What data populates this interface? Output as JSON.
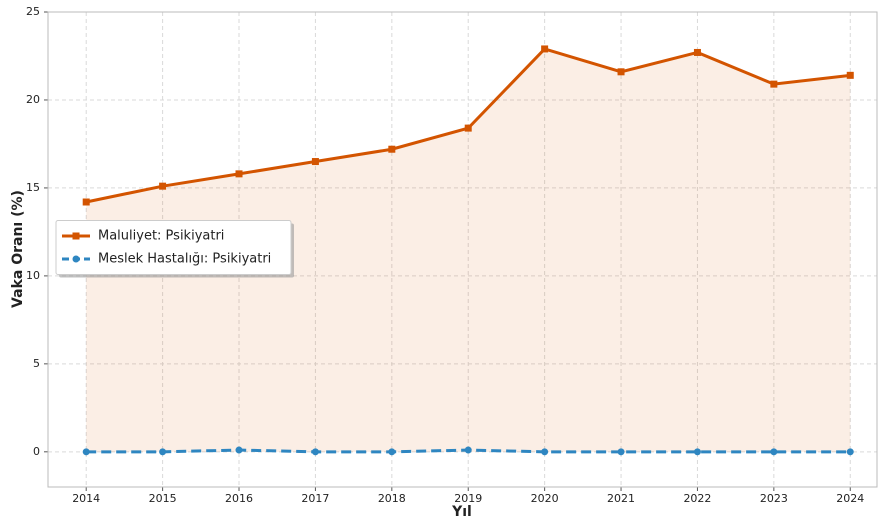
{
  "chart_data": {
    "type": "line",
    "x_label": "Yıl",
    "y_label": "Vaka Oranı (%)",
    "x": [
      2014,
      2015,
      2016,
      2017,
      2018,
      2019,
      2020,
      2021,
      2022,
      2023,
      2024
    ],
    "series": [
      {
        "name": "Maluliyet: Psikiyatri",
        "color": "#d35400",
        "marker": "square",
        "dash": "solid",
        "fill": true,
        "values": [
          14.2,
          15.1,
          15.8,
          16.5,
          17.2,
          18.4,
          22.9,
          21.6,
          22.7,
          20.9,
          21.4
        ]
      },
      {
        "name": "Meslek Hastalığı: Psikiyatri",
        "color": "#2e86c1",
        "marker": "circle",
        "dash": "dashed",
        "fill": false,
        "values": [
          0,
          0,
          0.1,
          0,
          0,
          0.1,
          0,
          0,
          0,
          0,
          0
        ]
      }
    ],
    "xlim": [
      2013.5,
      2024.35
    ],
    "ylim": [
      -2,
      25
    ],
    "xticks": [
      2014,
      2015,
      2016,
      2017,
      2018,
      2019,
      2020,
      2021,
      2022,
      2023,
      2024
    ],
    "yticks": [
      0,
      5,
      10,
      15,
      20,
      25
    ],
    "grid": true,
    "legend": "center left"
  }
}
